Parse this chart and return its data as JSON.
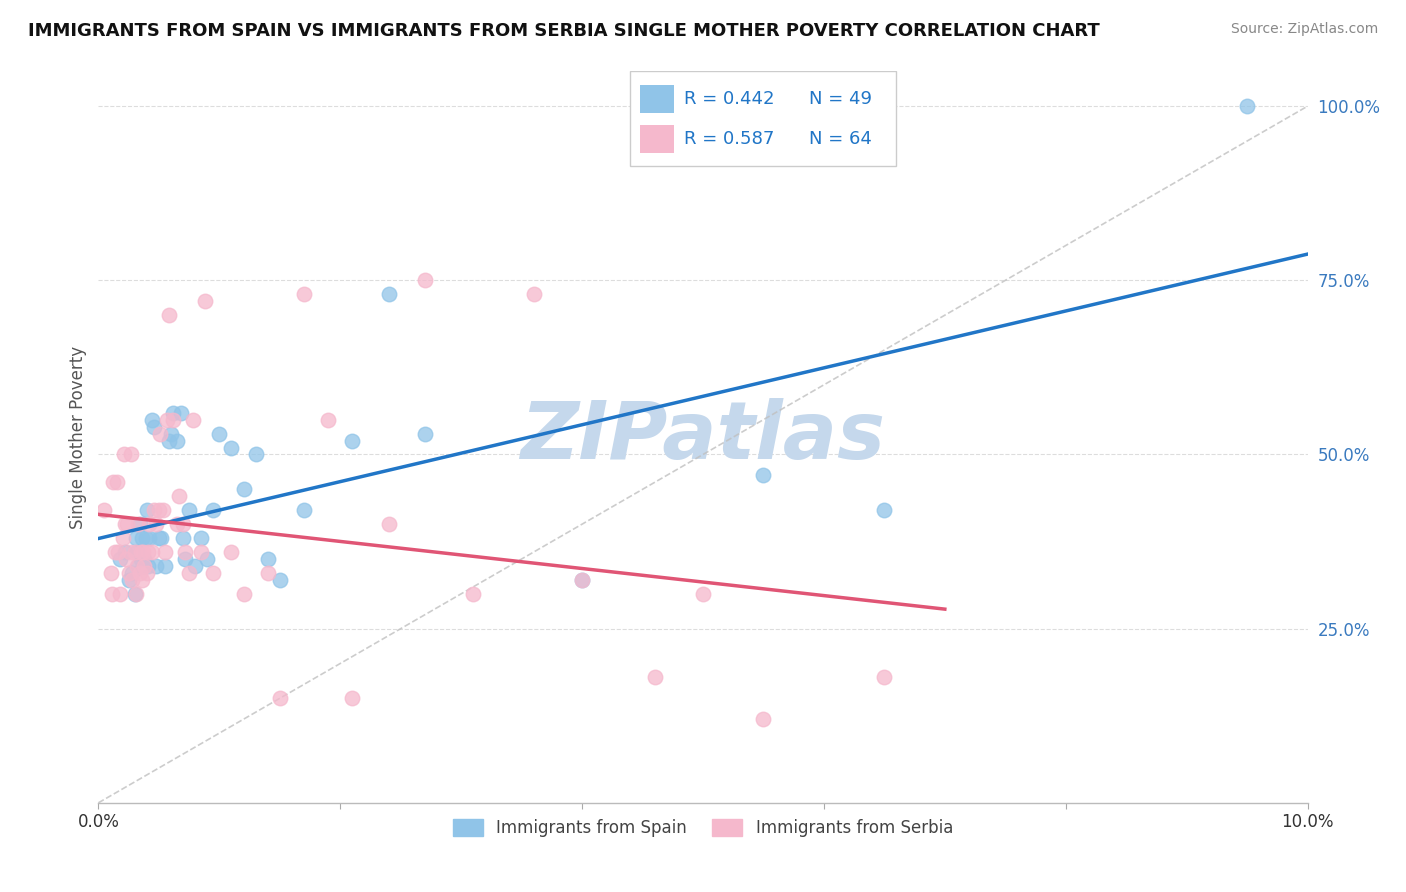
{
  "title": "IMMIGRANTS FROM SPAIN VS IMMIGRANTS FROM SERBIA SINGLE MOTHER POVERTY CORRELATION CHART",
  "source": "Source: ZipAtlas.com",
  "ylabel": "Single Mother Poverty",
  "legend_label1": "Immigrants from Spain",
  "legend_label2": "Immigrants from Serbia",
  "r1": 0.442,
  "n1": 49,
  "r2": 0.587,
  "n2": 64,
  "color_spain": "#90c4e8",
  "color_serbia": "#f5b8cc",
  "color_spain_line": "#2176c7",
  "color_serbia_line": "#e05575",
  "color_diagonal": "#c0c0c0",
  "background": "#ffffff",
  "grid_color": "#dddddd",
  "watermark": "ZIPatlas",
  "watermark_color": "#c5d8ec",
  "spain_x": [
    0.18,
    0.22,
    0.25,
    0.28,
    0.3,
    0.31,
    0.32,
    0.33,
    0.34,
    0.35,
    0.36,
    0.37,
    0.38,
    0.39,
    0.4,
    0.41,
    0.42,
    0.44,
    0.46,
    0.48,
    0.5,
    0.52,
    0.55,
    0.58,
    0.6,
    0.62,
    0.65,
    0.68,
    0.7,
    0.72,
    0.75,
    0.8,
    0.85,
    0.9,
    0.95,
    1.0,
    1.1,
    1.2,
    1.3,
    1.4,
    1.5,
    1.7,
    2.1,
    2.4,
    2.7,
    4.0,
    5.5,
    6.5,
    9.5
  ],
  "spain_y": [
    35,
    36,
    32,
    33,
    30,
    38,
    36,
    34,
    40,
    35,
    38,
    34,
    35,
    38,
    42,
    34,
    38,
    55,
    54,
    34,
    38,
    38,
    34,
    52,
    53,
    56,
    52,
    56,
    38,
    35,
    42,
    34,
    38,
    35,
    42,
    53,
    51,
    45,
    50,
    35,
    32,
    42,
    52,
    73,
    53,
    32,
    47,
    42,
    100
  ],
  "serbia_x": [
    0.05,
    0.1,
    0.11,
    0.12,
    0.14,
    0.15,
    0.16,
    0.18,
    0.2,
    0.21,
    0.22,
    0.23,
    0.24,
    0.25,
    0.26,
    0.27,
    0.28,
    0.3,
    0.31,
    0.32,
    0.33,
    0.34,
    0.35,
    0.36,
    0.37,
    0.38,
    0.4,
    0.41,
    0.42,
    0.44,
    0.46,
    0.48,
    0.5,
    0.51,
    0.53,
    0.55,
    0.57,
    0.58,
    0.62,
    0.65,
    0.67,
    0.7,
    0.72,
    0.75,
    0.78,
    0.85,
    0.88,
    0.95,
    1.1,
    1.2,
    1.4,
    1.5,
    1.7,
    1.9,
    2.1,
    2.4,
    2.7,
    3.1,
    3.6,
    4.0,
    4.6,
    5.0,
    5.5,
    6.5
  ],
  "serbia_y": [
    42,
    33,
    30,
    46,
    36,
    46,
    36,
    30,
    38,
    50,
    40,
    35,
    40,
    33,
    36,
    50,
    32,
    36,
    30,
    34,
    40,
    33,
    36,
    32,
    36,
    34,
    33,
    36,
    40,
    36,
    42,
    40,
    42,
    53,
    42,
    36,
    55,
    70,
    55,
    40,
    44,
    40,
    36,
    33,
    55,
    36,
    72,
    33,
    36,
    30,
    33,
    15,
    73,
    55,
    15,
    40,
    75,
    30,
    73,
    32,
    18,
    30,
    12,
    18
  ],
  "xlim": [
    0.0,
    10.0
  ],
  "ylim": [
    0.0,
    105.0
  ],
  "yticks": [
    25,
    50,
    75,
    100
  ],
  "ytick_labels": [
    "25.0%",
    "50.0%",
    "75.0%",
    "100.0%"
  ]
}
